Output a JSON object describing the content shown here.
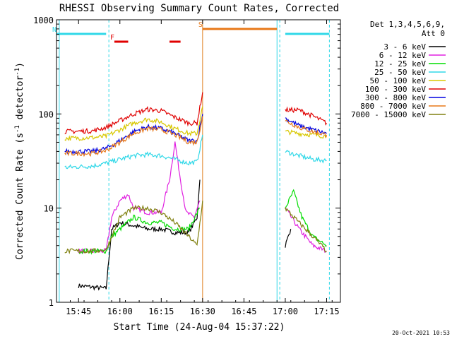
{
  "chart_data": {
    "type": "line",
    "title": "RHESSI Observing Summary Count Rates, Corrected",
    "xlabel": "Start Time (24-Aug-04 15:37:22)",
    "ylabel": "Corrected Count Rate (s",
    "ylabel_sup1": "-1",
    "ylabel_mid": " detector",
    "ylabel_sup2": "-1",
    "ylabel_end": ")",
    "y_scale": "log",
    "ylim": [
      1,
      1000
    ],
    "xlim": [
      "15:37",
      "17:20"
    ],
    "x_ticks": [
      "15:45",
      "16:00",
      "16:15",
      "16:30",
      "16:45",
      "17:00",
      "17:15"
    ],
    "y_ticks": [
      "1",
      "10",
      "100",
      "1000"
    ],
    "legend_header": [
      "Det 1,3,4,5,6,9,",
      "Att 0"
    ],
    "timestamp": "20-Oct-2021 10:53",
    "flags": [
      {
        "label": "N",
        "color": "#30d8e8",
        "segments": [
          [
            "15:37",
            "15:55"
          ],
          [
            "17:00",
            "17:16"
          ]
        ]
      },
      {
        "label": "F",
        "color": "#e00000",
        "segments": [
          [
            "15:58",
            "16:03"
          ],
          [
            "16:18",
            "16:22"
          ]
        ]
      },
      {
        "label": "S",
        "color": "#e87818",
        "segments": [
          [
            "16:30",
            "16:57"
          ]
        ]
      }
    ],
    "vlines": [
      {
        "time": "15:38",
        "color": "#30d8e8",
        "style": "solid"
      },
      {
        "time": "15:56",
        "color": "#30d8e8",
        "style": "dashed"
      },
      {
        "time": "16:30",
        "color": "#e08020",
        "style": "solid"
      },
      {
        "time": "16:57",
        "color": "#30d8e8",
        "style": "solid"
      },
      {
        "time": "16:58",
        "color": "#30d8e8",
        "style": "dashed"
      },
      {
        "time": "17:16",
        "color": "#30d8e8",
        "style": "dashed"
      }
    ],
    "series": [
      {
        "name": "3 - 6 keV",
        "color": "#000000",
        "points": [
          [
            "15:45",
            1.5
          ],
          [
            "15:55",
            1.4
          ],
          [
            "15:57",
            6
          ],
          [
            "16:00",
            7
          ],
          [
            "16:05",
            6.5
          ],
          [
            "16:10",
            6
          ],
          [
            "16:15",
            6
          ],
          [
            "16:20",
            5.5
          ],
          [
            "16:25",
            5.5
          ],
          [
            "16:28",
            8
          ],
          [
            "16:29",
            20
          ],
          [
            "17:00",
            4
          ],
          [
            "17:02",
            6
          ]
        ]
      },
      {
        "name": "6 - 12 keV",
        "color": "#e020e0",
        "points": [
          [
            "15:45",
            3.5
          ],
          [
            "15:55",
            3.5
          ],
          [
            "15:57",
            8
          ],
          [
            "16:00",
            12
          ],
          [
            "16:03",
            14
          ],
          [
            "16:05",
            10
          ],
          [
            "16:10",
            9
          ],
          [
            "16:15",
            9
          ],
          [
            "16:18",
            20
          ],
          [
            "16:20",
            50
          ],
          [
            "16:22",
            20
          ],
          [
            "16:24",
            9
          ],
          [
            "16:27",
            8
          ],
          [
            "16:29",
            12
          ],
          [
            "17:00",
            10
          ],
          [
            "17:05",
            6
          ],
          [
            "17:10",
            4
          ],
          [
            "17:15",
            3.5
          ]
        ]
      },
      {
        "name": "12 - 25 keV",
        "color": "#00dd00",
        "points": [
          [
            "15:45",
            3.5
          ],
          [
            "15:55",
            3.5
          ],
          [
            "15:57",
            5
          ],
          [
            "16:00",
            6
          ],
          [
            "16:05",
            8
          ],
          [
            "16:10",
            7
          ],
          [
            "16:15",
            7
          ],
          [
            "16:20",
            6
          ],
          [
            "16:25",
            6
          ],
          [
            "16:29",
            10
          ],
          [
            "17:00",
            10
          ],
          [
            "17:03",
            15
          ],
          [
            "17:06",
            8
          ],
          [
            "17:10",
            5
          ],
          [
            "17:15",
            4
          ]
        ]
      },
      {
        "name": "25 - 50 keV",
        "color": "#30d8e8",
        "points": [
          [
            "15:40",
            27
          ],
          [
            "15:50",
            28
          ],
          [
            "15:55",
            30
          ],
          [
            "16:00",
            33
          ],
          [
            "16:05",
            36
          ],
          [
            "16:10",
            37
          ],
          [
            "16:15",
            36
          ],
          [
            "16:20",
            33
          ],
          [
            "16:25",
            30
          ],
          [
            "16:28",
            31
          ],
          [
            "16:30",
            60
          ],
          [
            "17:00",
            40
          ],
          [
            "17:05",
            36
          ],
          [
            "17:10",
            33
          ],
          [
            "17:15",
            32
          ]
        ]
      },
      {
        "name": "50 - 100 keV",
        "color": "#d8c800",
        "points": [
          [
            "15:40",
            55
          ],
          [
            "15:50",
            56
          ],
          [
            "15:55",
            58
          ],
          [
            "16:00",
            68
          ],
          [
            "16:05",
            80
          ],
          [
            "16:10",
            88
          ],
          [
            "16:15",
            82
          ],
          [
            "16:20",
            70
          ],
          [
            "16:25",
            62
          ],
          [
            "16:28",
            62
          ],
          [
            "16:30",
            120
          ],
          [
            "17:00",
            65
          ],
          [
            "17:05",
            62
          ],
          [
            "17:10",
            60
          ],
          [
            "17:15",
            58
          ]
        ]
      },
      {
        "name": "100 - 300 keV",
        "color": "#e00000",
        "points": [
          [
            "15:40",
            65
          ],
          [
            "15:50",
            66
          ],
          [
            "15:55",
            72
          ],
          [
            "16:00",
            85
          ],
          [
            "16:05",
            100
          ],
          [
            "16:10",
            112
          ],
          [
            "16:15",
            108
          ],
          [
            "16:20",
            92
          ],
          [
            "16:25",
            80
          ],
          [
            "16:28",
            80
          ],
          [
            "16:30",
            170
          ],
          [
            "17:00",
            110
          ],
          [
            "17:05",
            110
          ],
          [
            "17:10",
            95
          ],
          [
            "17:15",
            80
          ]
        ]
      },
      {
        "name": "300 - 800 keV",
        "color": "#0000e0",
        "points": [
          [
            "15:40",
            40
          ],
          [
            "15:50",
            40
          ],
          [
            "15:55",
            43
          ],
          [
            "16:00",
            52
          ],
          [
            "16:05",
            65
          ],
          [
            "16:10",
            73
          ],
          [
            "16:15",
            70
          ],
          [
            "16:20",
            62
          ],
          [
            "16:25",
            52
          ],
          [
            "16:28",
            52
          ],
          [
            "16:30",
            100
          ],
          [
            "17:00",
            90
          ],
          [
            "17:05",
            75
          ],
          [
            "17:10",
            68
          ],
          [
            "17:15",
            62
          ]
        ]
      },
      {
        "name": "800 - 7000 keV",
        "color": "#e87818",
        "points": [
          [
            "15:40",
            38
          ],
          [
            "15:50",
            38
          ],
          [
            "15:55",
            41
          ],
          [
            "16:00",
            50
          ],
          [
            "16:05",
            62
          ],
          [
            "16:10",
            70
          ],
          [
            "16:15",
            68
          ],
          [
            "16:20",
            60
          ],
          [
            "16:25",
            50
          ],
          [
            "16:28",
            50
          ],
          [
            "16:30",
            95
          ],
          [
            "17:00",
            85
          ],
          [
            "17:05",
            72
          ],
          [
            "17:10",
            65
          ],
          [
            "17:15",
            60
          ]
        ]
      },
      {
        "name": "7000 - 15000 keV",
        "color": "#808010",
        "points": [
          [
            "15:40",
            3.5
          ],
          [
            "15:50",
            3.5
          ],
          [
            "15:55",
            3.6
          ],
          [
            "16:00",
            8
          ],
          [
            "16:05",
            10
          ],
          [
            "16:10",
            10
          ],
          [
            "16:15",
            9
          ],
          [
            "16:20",
            7
          ],
          [
            "16:25",
            5
          ],
          [
            "16:28",
            4
          ],
          [
            "16:30",
            12
          ],
          [
            "17:00",
            10
          ],
          [
            "17:05",
            7
          ],
          [
            "17:10",
            5
          ],
          [
            "17:15",
            3.5
          ]
        ]
      }
    ]
  }
}
